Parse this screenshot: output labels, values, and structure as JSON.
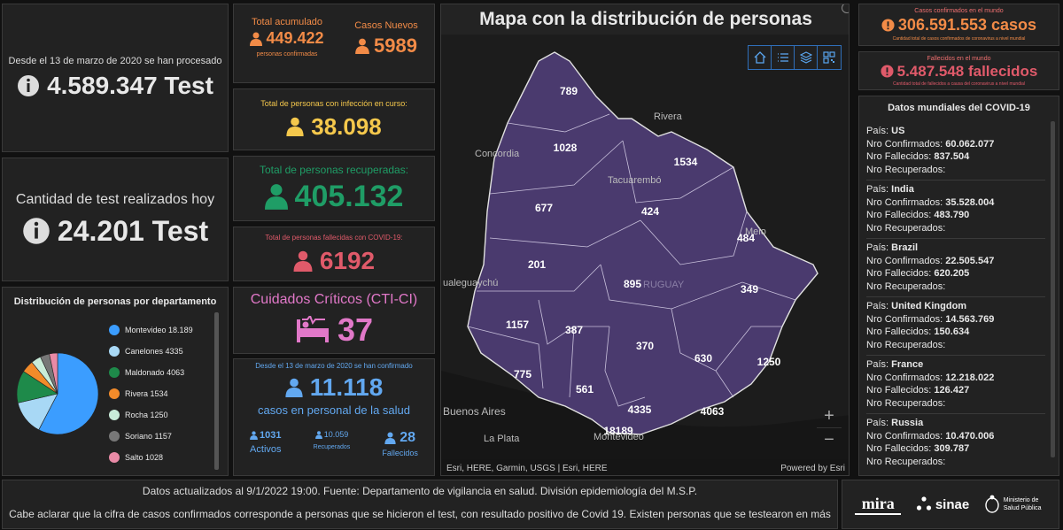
{
  "tests_total": {
    "label": "Desde el 13 de marzo de 2020 se han procesado",
    "value": "4.589.347 Test"
  },
  "tests_today": {
    "label": "Cantidad de test realizados hoy",
    "value": "24.201 Test"
  },
  "distribution": {
    "title": "Distribución de personas por departamento",
    "items": [
      {
        "name": "Montevideo",
        "value": "18.189",
        "color": "#3b9dff"
      },
      {
        "name": "Canelones",
        "value": "4335",
        "color": "#a8d8f5"
      },
      {
        "name": "Maldonado",
        "value": "4063",
        "color": "#1e8a4a"
      },
      {
        "name": "Rivera",
        "value": "1534",
        "color": "#f28b2a"
      },
      {
        "name": "Rocha",
        "value": "1250",
        "color": "#c9ecd9"
      },
      {
        "name": "Soriano",
        "value": "1157",
        "color": "#777777"
      },
      {
        "name": "Salto",
        "value": "1028",
        "color": "#e98aa6"
      }
    ]
  },
  "accumulated": {
    "label": "Total acumulado",
    "value": "449.422",
    "sub": "personas confirmadas"
  },
  "new_cases": {
    "label": "Casos Nuevos",
    "value": "5989"
  },
  "active": {
    "label": "Total de personas con infección en curso:",
    "value": "38.098"
  },
  "recovered": {
    "label": "Total de personas recuperadas:",
    "value": "405.132"
  },
  "deceased": {
    "label": "Total de personas fallecidas con COVID-19:",
    "value": "6192"
  },
  "critical": {
    "label": "Cuidados Críticos (CTI-CI)",
    "value": "37"
  },
  "health_staff": {
    "label": "Desde el 13 de marzo de 2020 se han confirmado",
    "value": "11.118",
    "sub": "casos en personal de la salud",
    "activos_value": "1031",
    "activos_label": "Activos",
    "recuperados_value": "10.059",
    "recuperados_label": "Recuperados",
    "fallecidos_value": "28",
    "fallecidos_label": "Fallecidos"
  },
  "map": {
    "title": "Mapa con la distribución de personas",
    "attribution": "Esri, HERE, Garmin, USGS | Esri, HERE",
    "powered": "Powered by Esri",
    "zoom_in": "+",
    "zoom_out": "−",
    "places": {
      "rivera": "Rivera",
      "concordia": "Concordia",
      "tacuarembo": "Tacuarembó",
      "melo": "Melo",
      "gualeguaychu": "ualeguaychú",
      "uruguay": "RUGUAY",
      "buenos_aires": "Buenos Aires",
      "la_plata": "La Plata",
      "montevideo": "Montevideo"
    },
    "counts": {
      "artigas": "789",
      "salto": "1028",
      "rivera": "1534",
      "paysandu": "677",
      "tacuarembo": "424",
      "cerro_largo": "484",
      "rio_negro": "201",
      "durazno": "895",
      "treinta_y_tres": "349",
      "soriano": "1157",
      "flores": "387",
      "florida": "370",
      "lavalleja": "630",
      "rocha": "1250",
      "colonia": "775",
      "san_jose": "561",
      "canelones": "4335",
      "maldonado": "4063",
      "montevideo": "18189"
    }
  },
  "world_confirmed": {
    "label": "Casos confirmados en el mundo",
    "value": "306.591.553 casos",
    "sub": "Cantidad total de casos confirmados de coronavirus a nivel mundial"
  },
  "world_deaths": {
    "label": "Fallecidos en el mundo",
    "value": "5.487.548 fallecidos",
    "sub": "Cantidad total de fallecidos a causa del coronavirus a nivel mundial"
  },
  "world_data": {
    "title": "Datos mundiales del COVID-19",
    "k_pais": "País:",
    "k_conf": "Nro Confirmados:",
    "k_fall": "Nro Fallecidos:",
    "k_rec": "Nro Recuperados:",
    "countries": [
      {
        "name": "US",
        "confirmed": "60.062.077",
        "deaths": "837.504"
      },
      {
        "name": "India",
        "confirmed": "35.528.004",
        "deaths": "483.790"
      },
      {
        "name": "Brazil",
        "confirmed": "22.505.547",
        "deaths": "620.205"
      },
      {
        "name": "United Kingdom",
        "confirmed": "14.563.769",
        "deaths": "150.634"
      },
      {
        "name": "France",
        "confirmed": "12.218.022",
        "deaths": "126.427"
      },
      {
        "name": "Russia",
        "confirmed": "10.470.006",
        "deaths": "309.787"
      }
    ]
  },
  "footer": {
    "line1": "Datos actualizados al 9/1/2022 19:00. Fuente: Departamento de vigilancia en salud. División epidemiología del M.S.P.",
    "line2": "Cabe aclarar que la cifra de casos confirmados corresponde a personas que se hicieron el test, con resultado positivo de Covid 19. Existen personas que se testearon en más"
  },
  "logos": {
    "mira": "mira",
    "sinae": "sinae",
    "ministerio": "Ministerio de Salud Pública"
  }
}
